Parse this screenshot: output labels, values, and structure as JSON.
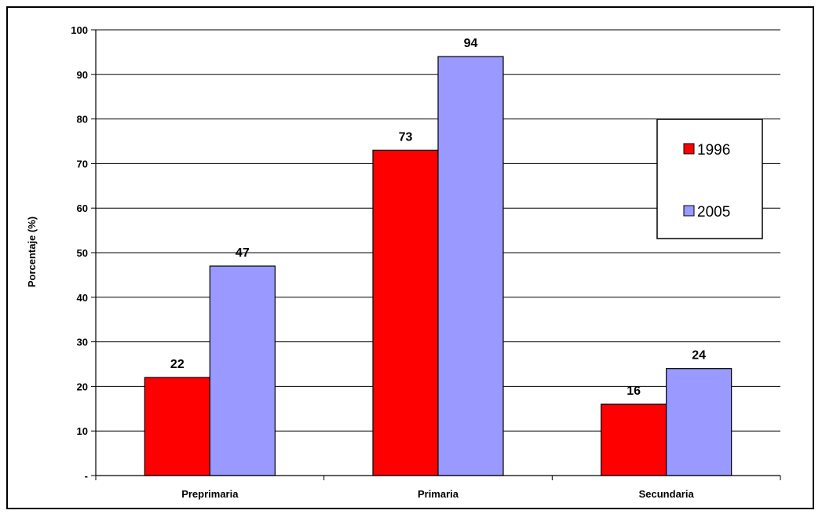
{
  "chart_data": {
    "type": "bar",
    "title": "",
    "xlabel": "",
    "ylabel": "Porcentaje (%)",
    "categories": [
      "Preprimaria",
      "Primaria",
      "Secundaria"
    ],
    "series": [
      {
        "name": "1996",
        "values": [
          22,
          73,
          16
        ],
        "color": "#ff0000"
      },
      {
        "name": "2005",
        "values": [
          47,
          94,
          24
        ],
        "color": "#9999ff"
      }
    ],
    "data_labels": [
      [
        "22",
        "73",
        "16"
      ],
      [
        "47",
        "94",
        "24"
      ]
    ],
    "ylim": [
      0,
      100
    ],
    "yticks": [
      0,
      10,
      20,
      30,
      40,
      50,
      60,
      70,
      80,
      90,
      100
    ],
    "ytick_labels": [
      "-",
      "10",
      "20",
      "30",
      "40",
      "50",
      "60",
      "70",
      "80",
      "90",
      "100"
    ],
    "grid": true,
    "legend": "right",
    "border_color": "#000000"
  }
}
